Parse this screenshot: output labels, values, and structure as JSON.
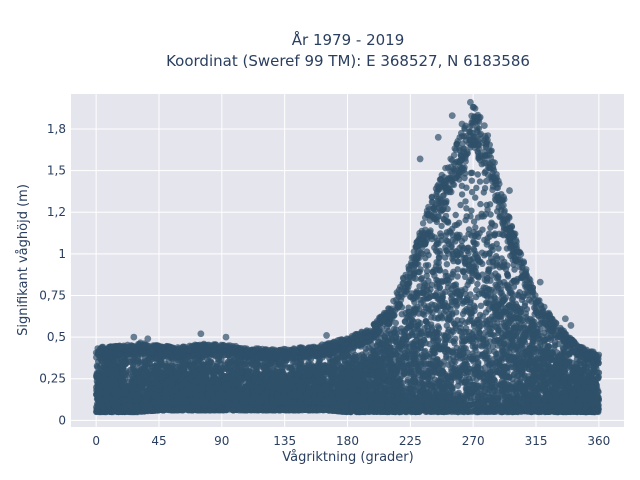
{
  "chart_data": {
    "type": "scatter",
    "title_line1": "År 1979 - 2019",
    "title_line2": "Koordinat (Sweref 99 TM): E 368527, N 6183586",
    "xlabel": "Vågriktning (grader)",
    "ylabel": "Signifikant våghöjd (m)",
    "xlim": [
      -18,
      378
    ],
    "ylim": [
      -0.04,
      1.96
    ],
    "x_ticks": [
      0,
      45,
      90,
      135,
      180,
      225,
      270,
      315,
      360
    ],
    "x_tick_labels": [
      "0",
      "45",
      "90",
      "135",
      "180",
      "225",
      "270",
      "315",
      "360"
    ],
    "y_ticks": [
      0,
      0.25,
      0.5,
      0.75,
      1,
      1.25,
      1.5,
      1.75
    ],
    "y_tick_labels": [
      "0",
      "0,25",
      "0,5",
      "0,75",
      "1",
      "1,2",
      "1,5",
      "1,8"
    ],
    "grid": true,
    "marker_color": "#2f5069",
    "background_color": "#e5e5ee",
    "grid_color": "#ffffff",
    "envelope": {
      "x": [
        0,
        20,
        30,
        45,
        60,
        75,
        90,
        105,
        120,
        135,
        150,
        165,
        180,
        195,
        210,
        225,
        240,
        255,
        265,
        270,
        280,
        290,
        300,
        315,
        330,
        345,
        360
      ],
      "y_min": [
        0.05,
        0.05,
        0.05,
        0.06,
        0.06,
        0.06,
        0.06,
        0.06,
        0.06,
        0.06,
        0.06,
        0.06,
        0.05,
        0.05,
        0.05,
        0.05,
        0.05,
        0.05,
        0.05,
        0.05,
        0.05,
        0.05,
        0.05,
        0.05,
        0.05,
        0.05,
        0.05
      ],
      "y_max": [
        0.44,
        0.45,
        0.47,
        0.45,
        0.44,
        0.46,
        0.46,
        0.44,
        0.43,
        0.43,
        0.44,
        0.46,
        0.5,
        0.55,
        0.68,
        0.95,
        1.35,
        1.6,
        1.8,
        1.9,
        1.75,
        1.4,
        1.1,
        0.75,
        0.58,
        0.45,
        0.4
      ]
    },
    "outliers": [
      {
        "x": 27,
        "y": 0.5
      },
      {
        "x": 37,
        "y": 0.49
      },
      {
        "x": 75,
        "y": 0.52
      },
      {
        "x": 93,
        "y": 0.5
      },
      {
        "x": 165,
        "y": 0.51
      },
      {
        "x": 232,
        "y": 1.57
      },
      {
        "x": 245,
        "y": 1.7
      },
      {
        "x": 255,
        "y": 1.83
      },
      {
        "x": 262,
        "y": 1.78
      },
      {
        "x": 268,
        "y": 1.91
      },
      {
        "x": 270,
        "y": 1.88
      },
      {
        "x": 275,
        "y": 1.82
      },
      {
        "x": 278,
        "y": 1.77
      },
      {
        "x": 284,
        "y": 1.55
      },
      {
        "x": 296,
        "y": 1.38
      },
      {
        "x": 300,
        "y": 1.12
      },
      {
        "x": 318,
        "y": 0.83
      },
      {
        "x": 336,
        "y": 0.61
      },
      {
        "x": 340,
        "y": 0.57
      }
    ]
  }
}
